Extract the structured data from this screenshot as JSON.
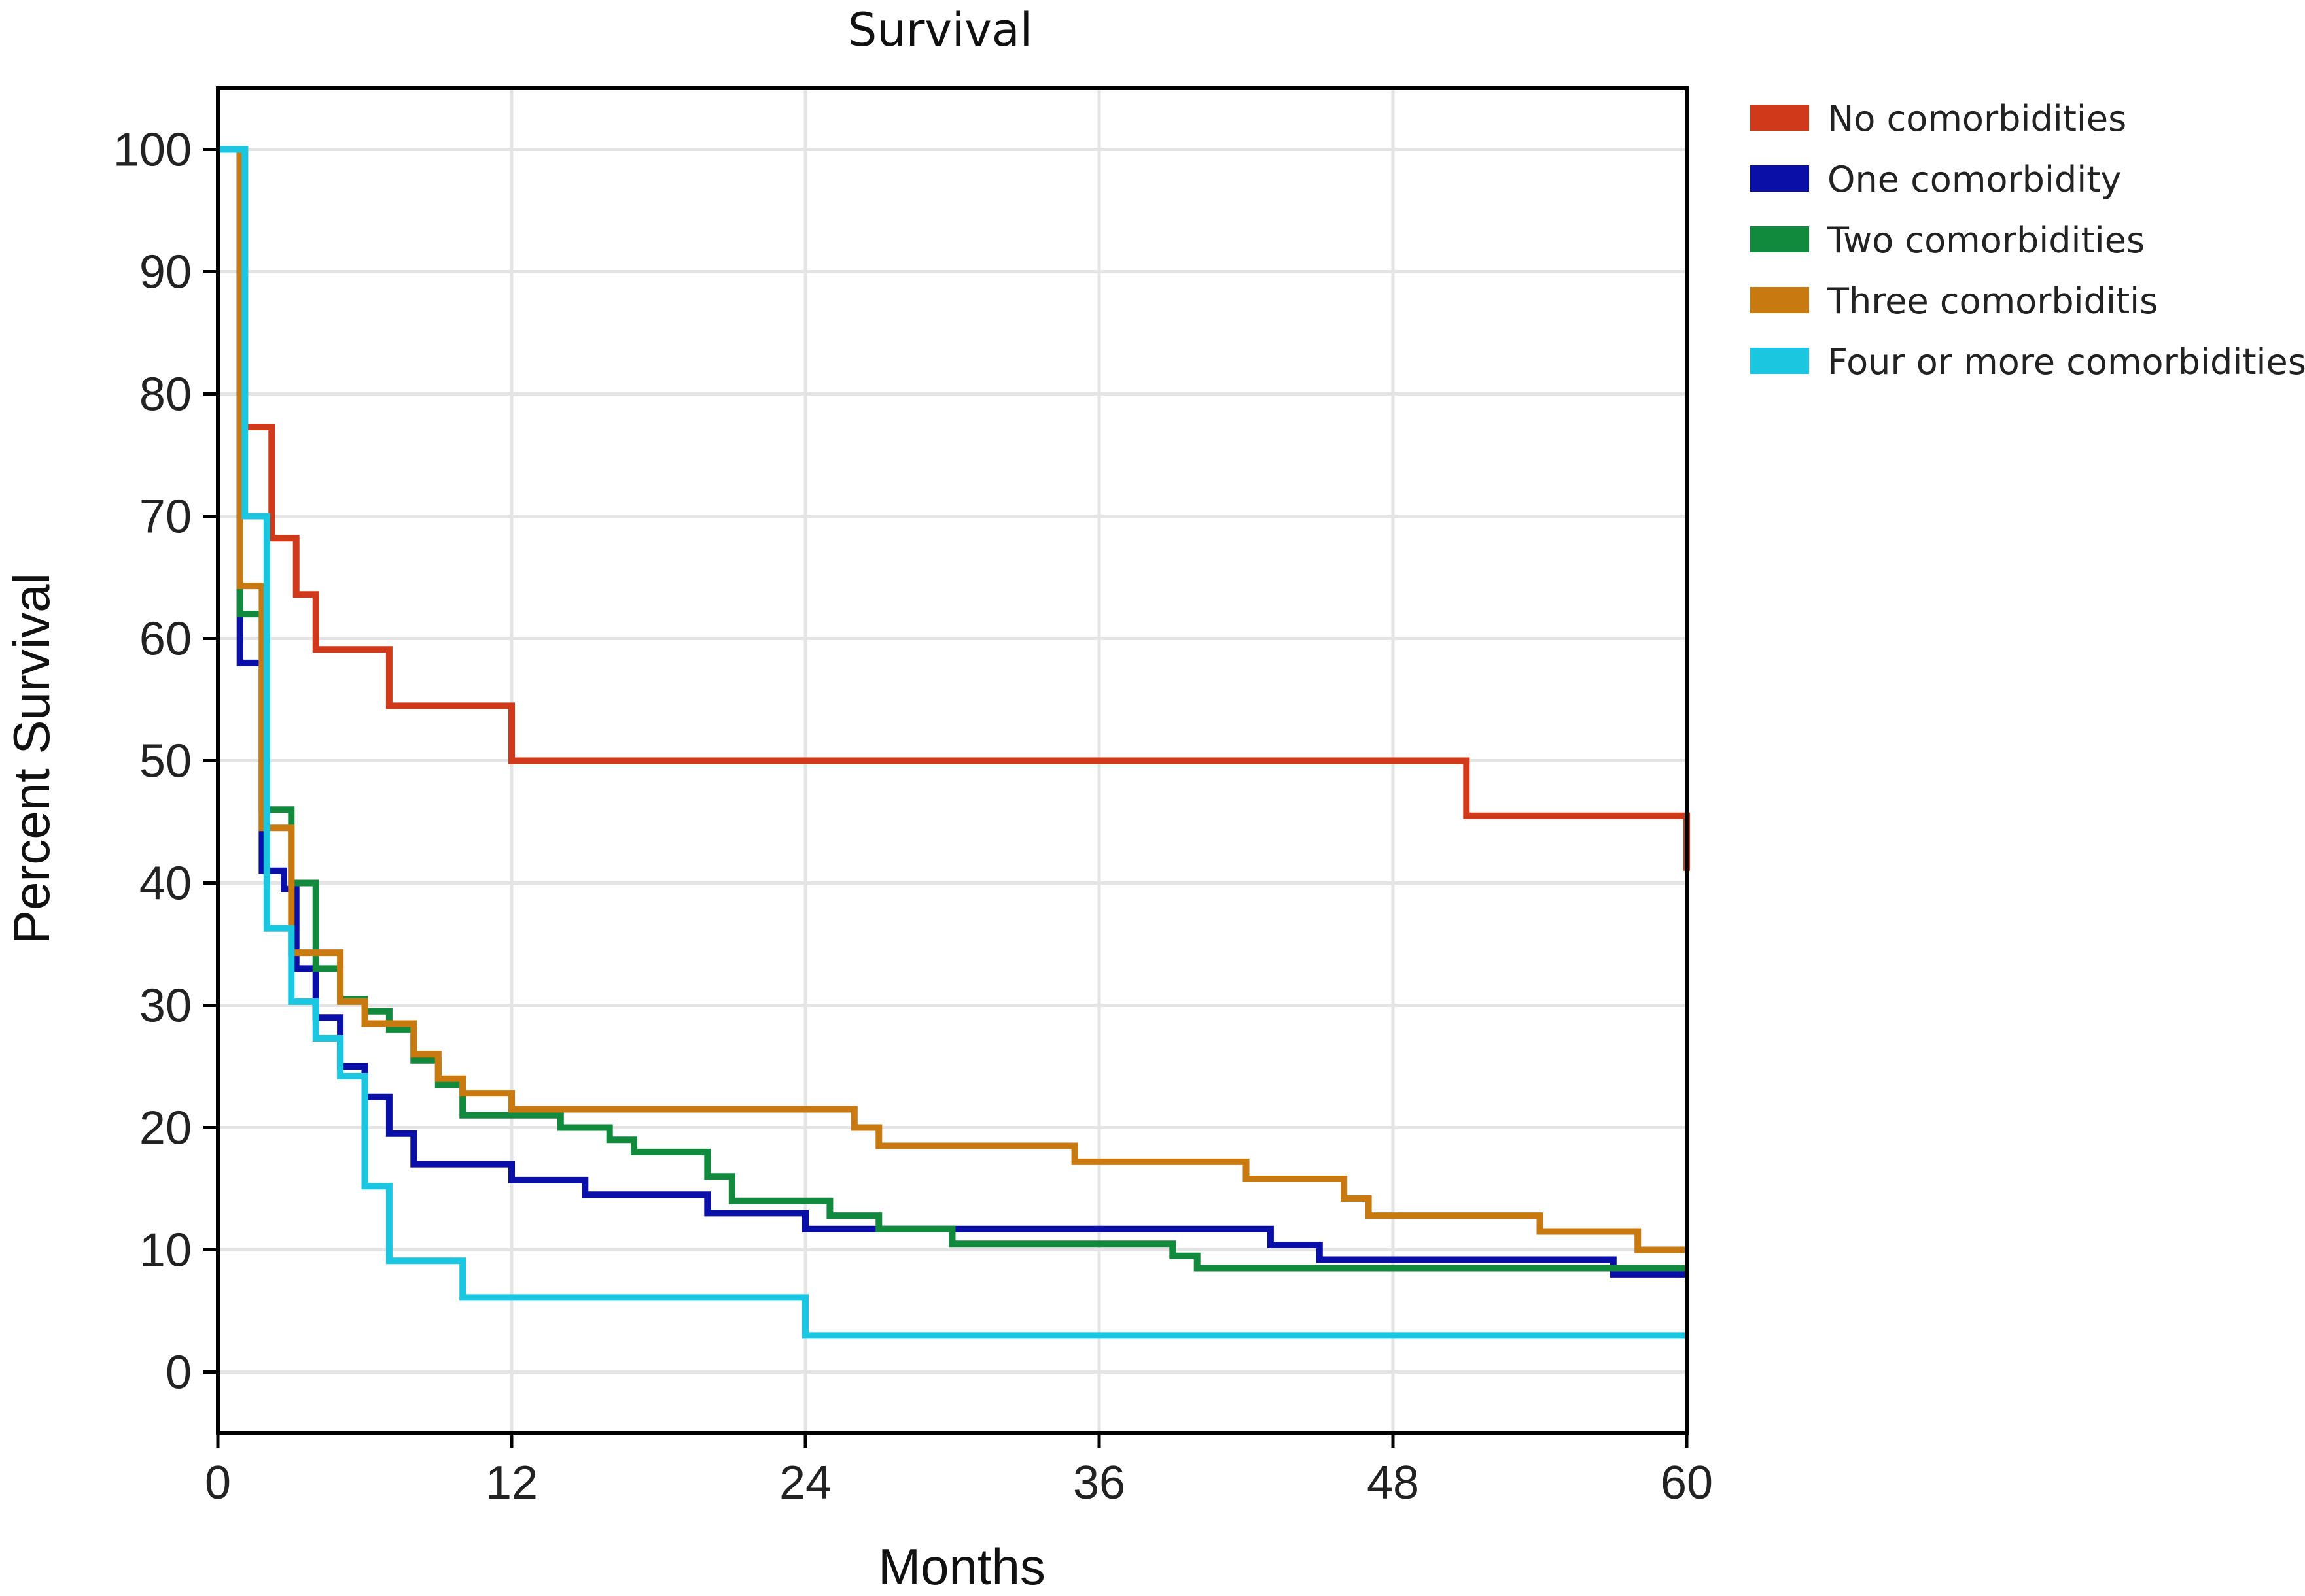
{
  "chart_data": {
    "type": "line",
    "step": true,
    "title": "Survival",
    "xlabel": "Months",
    "ylabel": "Percent Survival",
    "xlim": [
      0,
      60
    ],
    "ylim": [
      -5,
      105
    ],
    "x_ticks": [
      0,
      12,
      24,
      36,
      48,
      60
    ],
    "y_ticks": [
      0,
      10,
      20,
      30,
      40,
      50,
      60,
      70,
      80,
      90,
      100
    ],
    "grid": true,
    "legend_position": "outside-top-right",
    "series": [
      {
        "name": "No comorbidities",
        "color": "#d03a1a",
        "points": [
          [
            0,
            100
          ],
          [
            1.1,
            100
          ],
          [
            1.1,
            77.3
          ],
          [
            2.2,
            77.3
          ],
          [
            2.2,
            68.2
          ],
          [
            3.2,
            68.2
          ],
          [
            3.2,
            63.6
          ],
          [
            4,
            63.6
          ],
          [
            4,
            59.1
          ],
          [
            7,
            59.1
          ],
          [
            7,
            54.5
          ],
          [
            12,
            54.5
          ],
          [
            12,
            50
          ],
          [
            51,
            50
          ],
          [
            51,
            45.5
          ],
          [
            60,
            45.5
          ],
          [
            60,
            41
          ]
        ]
      },
      {
        "name": "One comorbidity",
        "color": "#0a0fa8",
        "points": [
          [
            0,
            100
          ],
          [
            0.9,
            100
          ],
          [
            0.9,
            58
          ],
          [
            1.8,
            58
          ],
          [
            1.8,
            41
          ],
          [
            2.7,
            41
          ],
          [
            2.7,
            39.5
          ],
          [
            3.2,
            39.5
          ],
          [
            3.2,
            33
          ],
          [
            4,
            33
          ],
          [
            4,
            29
          ],
          [
            5,
            29
          ],
          [
            5,
            25
          ],
          [
            6,
            25
          ],
          [
            6,
            22.5
          ],
          [
            7,
            22.5
          ],
          [
            7,
            19.5
          ],
          [
            8,
            19.5
          ],
          [
            8,
            17
          ],
          [
            12,
            17
          ],
          [
            12,
            15.7
          ],
          [
            15,
            15.7
          ],
          [
            15,
            14.5
          ],
          [
            20,
            14.5
          ],
          [
            20,
            13
          ],
          [
            24,
            13
          ],
          [
            24,
            11.7
          ],
          [
            43,
            11.7
          ],
          [
            43,
            10.4
          ],
          [
            45,
            10.4
          ],
          [
            45,
            9.2
          ],
          [
            57,
            9.2
          ],
          [
            57,
            8
          ],
          [
            60,
            8
          ]
        ]
      },
      {
        "name": "Two comorbidities",
        "color": "#128a3e",
        "points": [
          [
            0,
            100
          ],
          [
            0.9,
            100
          ],
          [
            0.9,
            62
          ],
          [
            1.8,
            62
          ],
          [
            1.8,
            46
          ],
          [
            3,
            46
          ],
          [
            3,
            40
          ],
          [
            4,
            40
          ],
          [
            4,
            33
          ],
          [
            5,
            33
          ],
          [
            5,
            30.5
          ],
          [
            6,
            30.5
          ],
          [
            6,
            29.5
          ],
          [
            7,
            29.5
          ],
          [
            7,
            28
          ],
          [
            8,
            28
          ],
          [
            8,
            25.5
          ],
          [
            9,
            25.5
          ],
          [
            9,
            23.5
          ],
          [
            10,
            23.5
          ],
          [
            10,
            21
          ],
          [
            14,
            21
          ],
          [
            14,
            20
          ],
          [
            16,
            20
          ],
          [
            16,
            19
          ],
          [
            17,
            19
          ],
          [
            17,
            18
          ],
          [
            20,
            18
          ],
          [
            20,
            16
          ],
          [
            21,
            16
          ],
          [
            21,
            14
          ],
          [
            25,
            14
          ],
          [
            25,
            12.8
          ],
          [
            27,
            12.8
          ],
          [
            27,
            11.7
          ],
          [
            30,
            11.7
          ],
          [
            30,
            10.5
          ],
          [
            39,
            10.5
          ],
          [
            39,
            9.5
          ],
          [
            40,
            9.5
          ],
          [
            40,
            8.5
          ],
          [
            60,
            8.5
          ]
        ]
      },
      {
        "name": "Three comorbiditis",
        "color": "#c87a10",
        "points": [
          [
            0,
            100
          ],
          [
            0.9,
            100
          ],
          [
            0.9,
            64.3
          ],
          [
            1.8,
            64.3
          ],
          [
            1.8,
            44.5
          ],
          [
            3,
            44.5
          ],
          [
            3,
            34.3
          ],
          [
            5,
            34.3
          ],
          [
            5,
            30.3
          ],
          [
            6,
            30.3
          ],
          [
            6,
            28.5
          ],
          [
            8,
            28.5
          ],
          [
            8,
            26
          ],
          [
            9,
            26
          ],
          [
            9,
            24
          ],
          [
            10,
            24
          ],
          [
            10,
            22.8
          ],
          [
            12,
            22.8
          ],
          [
            12,
            21.5
          ],
          [
            26,
            21.5
          ],
          [
            26,
            20
          ],
          [
            27,
            20
          ],
          [
            27,
            18.5
          ],
          [
            35,
            18.5
          ],
          [
            35,
            17.2
          ],
          [
            42,
            17.2
          ],
          [
            42,
            15.8
          ],
          [
            46,
            15.8
          ],
          [
            46,
            14.2
          ],
          [
            47,
            14.2
          ],
          [
            47,
            12.8
          ],
          [
            54,
            12.8
          ],
          [
            54,
            11.5
          ],
          [
            58,
            11.5
          ],
          [
            58,
            10
          ],
          [
            60,
            10
          ]
        ]
      },
      {
        "name": "Four or more comorbidities",
        "color": "#1ac6e0",
        "points": [
          [
            0,
            100
          ],
          [
            1.1,
            100
          ],
          [
            1.1,
            70
          ],
          [
            2,
            70
          ],
          [
            2,
            36.3
          ],
          [
            3,
            36.3
          ],
          [
            3,
            30.3
          ],
          [
            4,
            30.3
          ],
          [
            4,
            27.3
          ],
          [
            5,
            27.3
          ],
          [
            5,
            24.2
          ],
          [
            6,
            24.2
          ],
          [
            6,
            15.2
          ],
          [
            7,
            15.2
          ],
          [
            7,
            9.1
          ],
          [
            10,
            9.1
          ],
          [
            10,
            6.1
          ],
          [
            24,
            6.1
          ],
          [
            24,
            3
          ],
          [
            60,
            3
          ]
        ]
      }
    ]
  }
}
